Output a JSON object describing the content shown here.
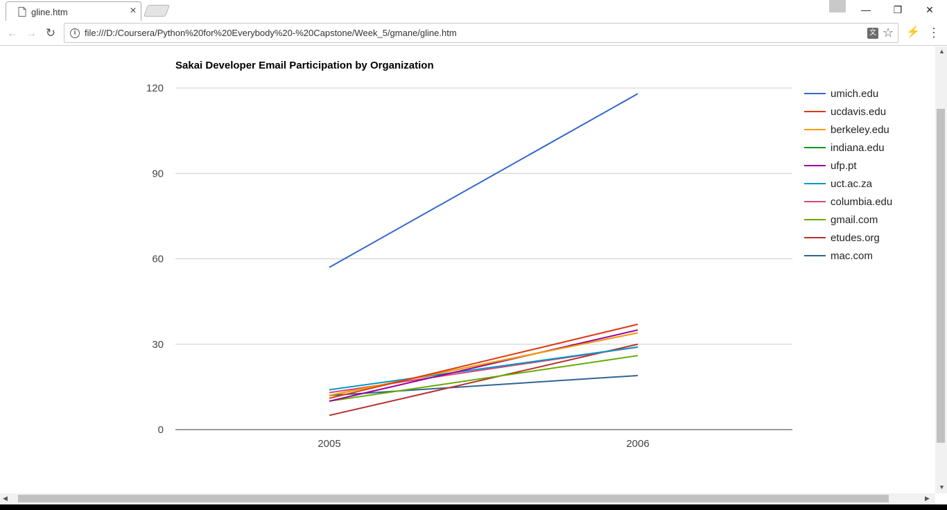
{
  "browser": {
    "tab_title": "gline.htm",
    "tab_close": "×",
    "url": "file:///D:/Coursera/Python%20for%20Everybody%20-%20Capstone/Week_5/gmane/gline.htm",
    "win_min": "—",
    "win_restore": "❐",
    "win_close": "✕",
    "back_glyph": "←",
    "forward_glyph": "→",
    "reload_glyph": "↻",
    "info_glyph": "i",
    "translate_glyph": "文",
    "star_glyph": "☆",
    "ext_glyph": "⚡",
    "menu_glyph": "⋮"
  },
  "icons": {
    "page": "page-icon",
    "back": "back-arrow-icon",
    "forward": "forward-arrow-icon",
    "reload": "reload-icon",
    "info": "info-icon",
    "translate": "translate-icon",
    "star": "bookmark-star-icon",
    "extension": "extension-icon",
    "menu": "menu-icon"
  },
  "chart_data": {
    "type": "line",
    "title": "Sakai Developer Email Participation by Organization",
    "xlabel": "",
    "ylabel": "",
    "categories": [
      "2005",
      "2006"
    ],
    "ylim": [
      0,
      120
    ],
    "yticks": [
      0,
      30,
      60,
      90,
      120
    ],
    "grid": true,
    "legend": "right",
    "series": [
      {
        "name": "umich.edu",
        "color": "#3366cc",
        "values": [
          57,
          118
        ]
      },
      {
        "name": "ucdavis.edu",
        "color": "#dc3912",
        "values": [
          11,
          37
        ]
      },
      {
        "name": "berkeley.edu",
        "color": "#ff9900",
        "values": [
          12,
          34
        ]
      },
      {
        "name": "indiana.edu",
        "color": "#109618",
        "values": [
          12,
          34
        ]
      },
      {
        "name": "ufp.pt",
        "color": "#990099",
        "values": [
          10,
          35
        ]
      },
      {
        "name": "uct.ac.za",
        "color": "#0099c6",
        "values": [
          14,
          29
        ]
      },
      {
        "name": "columbia.edu",
        "color": "#dd4477",
        "values": [
          13,
          29
        ]
      },
      {
        "name": "gmail.com",
        "color": "#66aa00",
        "values": [
          10,
          26
        ]
      },
      {
        "name": "etudes.org",
        "color": "#b82e2e",
        "values": [
          5,
          30
        ]
      },
      {
        "name": "mac.com",
        "color": "#316395",
        "values": [
          12,
          19
        ]
      }
    ]
  }
}
